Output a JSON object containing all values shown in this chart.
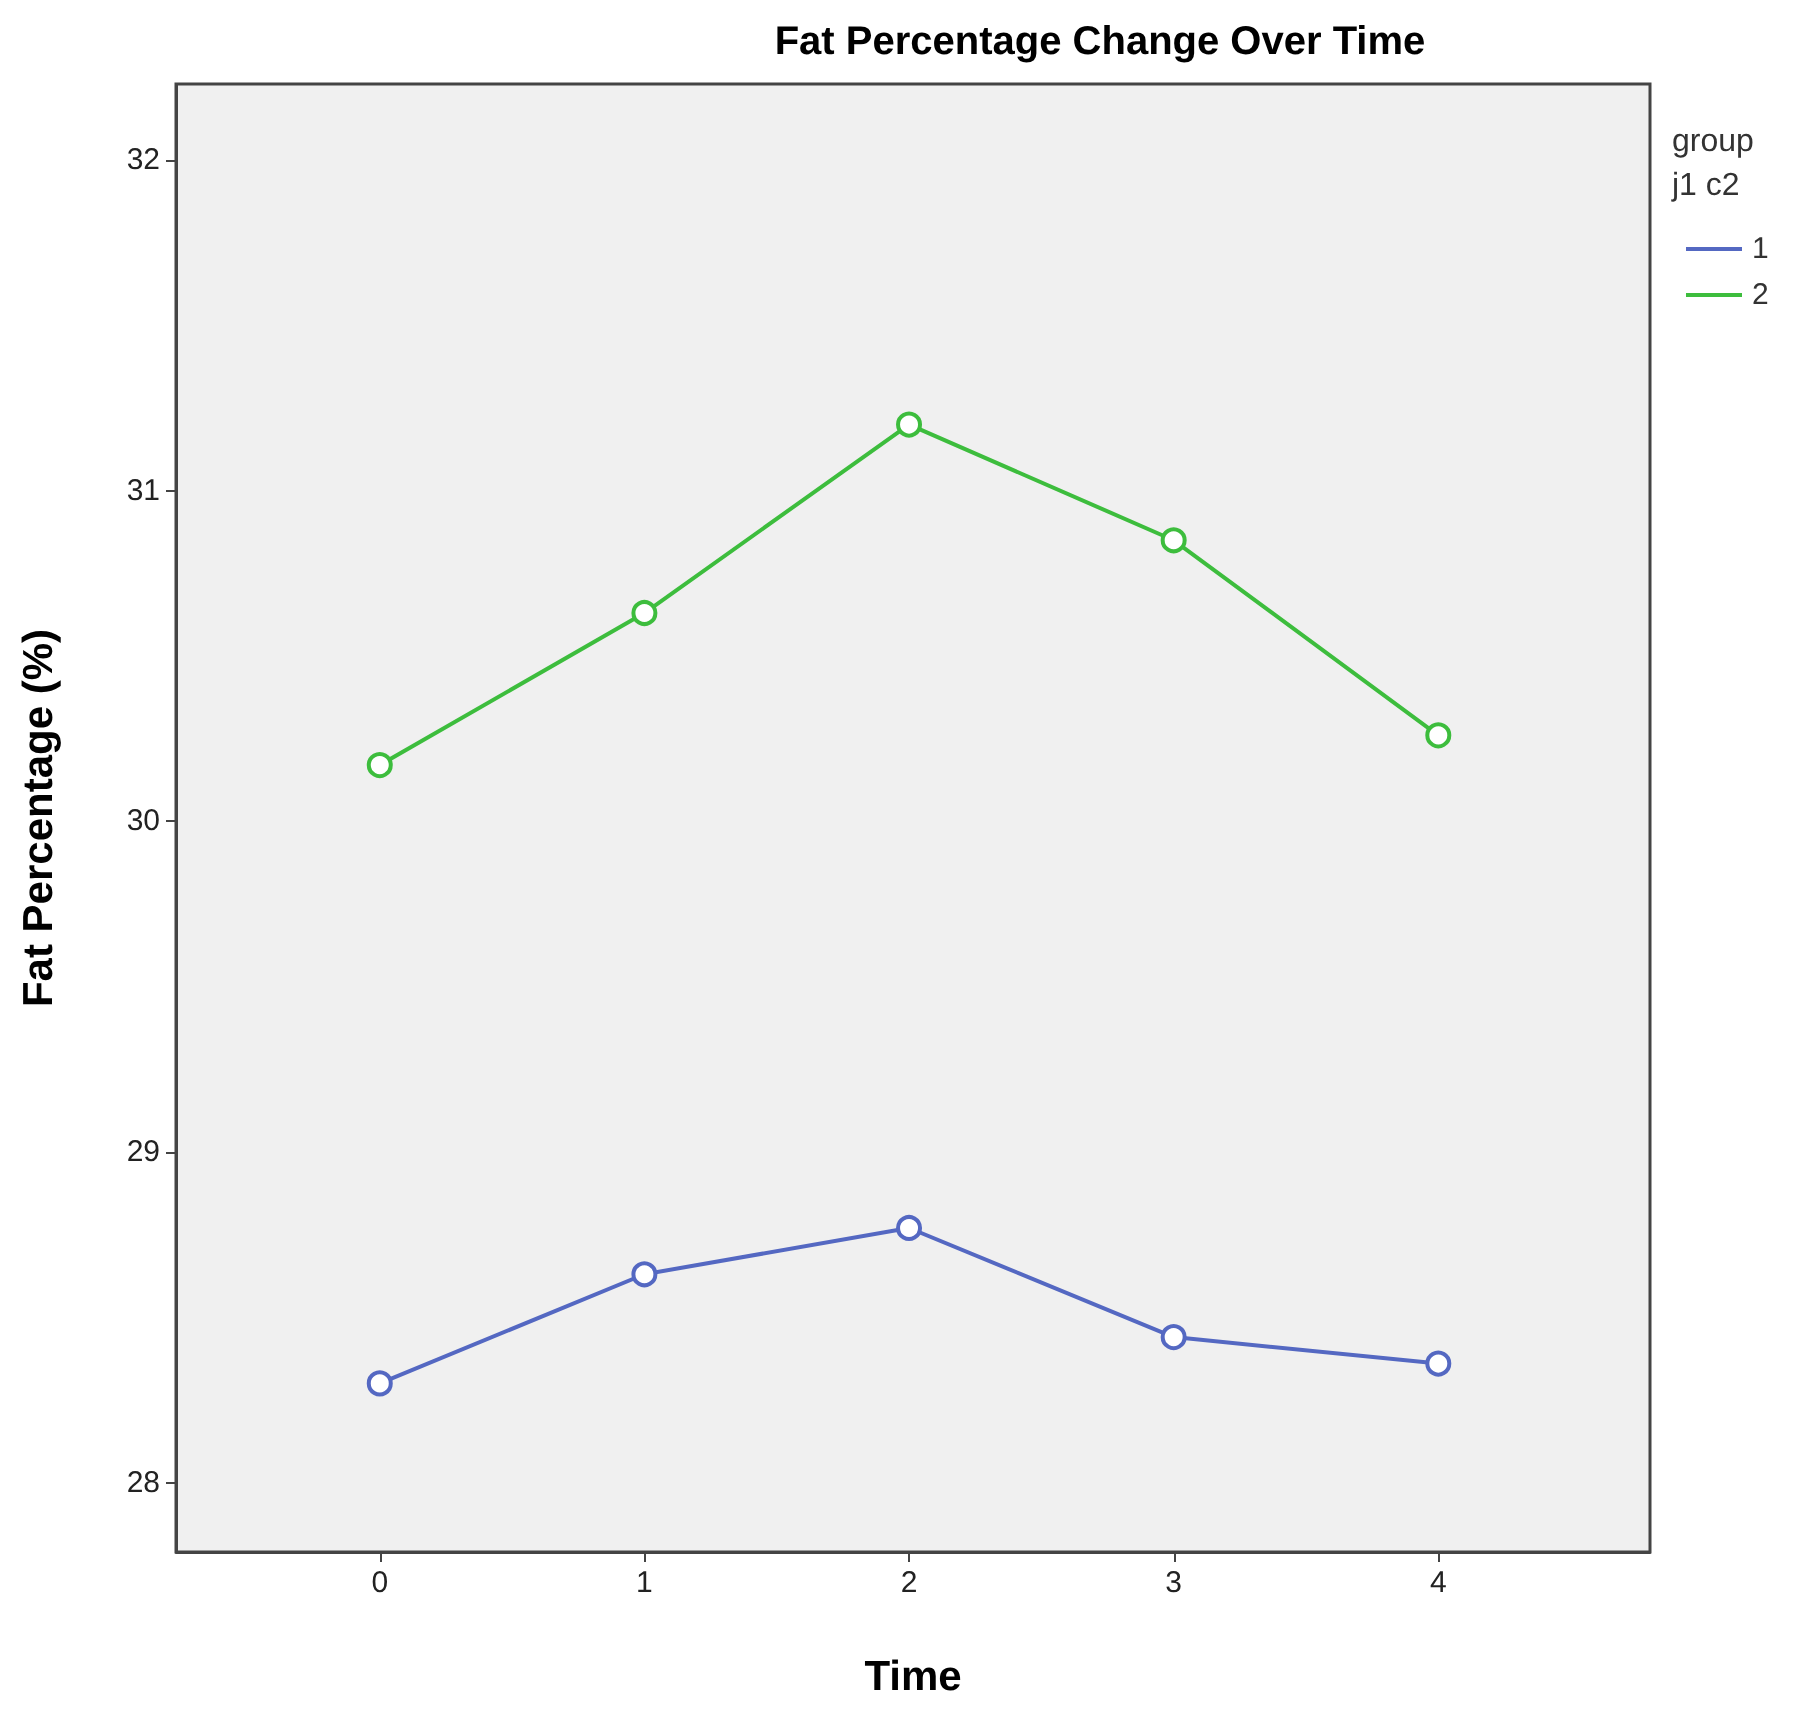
{
  "chart_data": {
    "type": "line",
    "title": "Fat Percentage Change Over Time",
    "xlabel": "Time",
    "ylabel": "Fat Percentage (%)",
    "legend_title": "group j1 c2",
    "x": [
      0,
      1,
      2,
      3,
      4
    ],
    "series": [
      {
        "name": "1",
        "color": "#5468c2",
        "values": [
          28.3,
          28.63,
          28.77,
          28.44,
          28.36
        ]
      },
      {
        "name": "2",
        "color": "#3dbd3d",
        "values": [
          30.17,
          30.63,
          31.2,
          30.85,
          30.26
        ]
      }
    ],
    "xlim": [
      -0.77,
      4.8
    ],
    "xticks": [
      0,
      1,
      2,
      3,
      4
    ],
    "ylim": [
      27.79,
      32.23
    ],
    "yticks": [
      28,
      29,
      30,
      31,
      32
    ],
    "grid": false,
    "legend": "right",
    "marker": "circle",
    "line_style": "solid"
  }
}
